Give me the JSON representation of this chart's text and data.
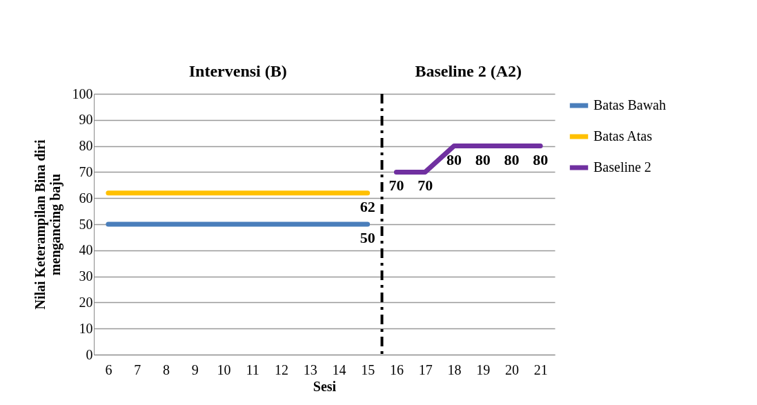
{
  "chart_data": {
    "type": "line",
    "xlabel": "Sesi",
    "ylabel": "Nilai Keterampilan Bina diri\nmengancing baju",
    "annotations": [
      "Intervensi (B)",
      "Baseline 2 (A2)"
    ],
    "xlim": [
      5.5,
      21.5
    ],
    "xticks": [
      6,
      7,
      8,
      9,
      10,
      11,
      12,
      13,
      14,
      15,
      16,
      17,
      18,
      19,
      20,
      21
    ],
    "ylim": [
      0,
      100
    ],
    "yticks": [
      0,
      10,
      20,
      30,
      40,
      50,
      60,
      70,
      80,
      90,
      100
    ],
    "grid": "y",
    "legend": "right",
    "marker": "none",
    "ref_lines": [
      {
        "axis": "x",
        "value": 15.5,
        "color": "#000000",
        "line_style": "dashed"
      }
    ],
    "series": [
      {
        "name": "Batas Bawah",
        "color": "#4a7ebb",
        "x": [
          6,
          15
        ],
        "values": [
          50,
          50
        ],
        "value_labels": [
          null,
          "50"
        ]
      },
      {
        "name": "Batas Atas",
        "color": "#ffc000",
        "x": [
          6,
          15
        ],
        "values": [
          62,
          62
        ],
        "value_labels": [
          null,
          "62"
        ]
      },
      {
        "name": "Baseline 2",
        "color": "#7030a0",
        "x": [
          16,
          17,
          18,
          19,
          20,
          21
        ],
        "values": [
          70,
          70,
          80,
          80,
          80,
          80
        ],
        "value_labels": [
          "70",
          "70",
          "80",
          "80",
          "80",
          "80"
        ]
      }
    ]
  }
}
